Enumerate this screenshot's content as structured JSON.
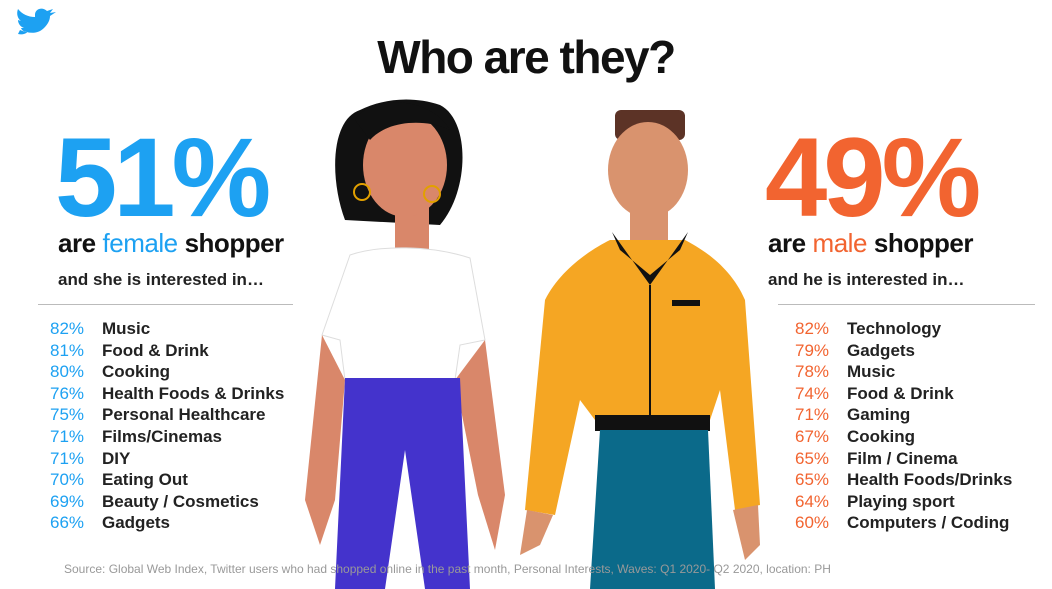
{
  "title": "Who are they?",
  "female": {
    "percent": "51%",
    "subtitle": [
      "are",
      "female",
      "shopper"
    ],
    "intro": "and she is interested in…",
    "items": [
      [
        "82%",
        "Music"
      ],
      [
        "81%",
        "Food & Drink"
      ],
      [
        "80%",
        "Cooking"
      ],
      [
        "76%",
        "Health Foods & Drinks"
      ],
      [
        "75%",
        "Personal Healthcare"
      ],
      [
        "71%",
        "Films/Cinemas"
      ],
      [
        "71%",
        "DIY"
      ],
      [
        "70%",
        "Eating Out"
      ],
      [
        "69%",
        "Beauty / Cosmetics"
      ],
      [
        "66%",
        "Gadgets"
      ]
    ]
  },
  "male": {
    "percent": "49%",
    "subtitle": [
      "are",
      "male",
      "shopper"
    ],
    "intro": "and he is interested in…",
    "items": [
      [
        "82%",
        "Technology"
      ],
      [
        "79%",
        "Gadgets"
      ],
      [
        "78%",
        "Music"
      ],
      [
        "74%",
        "Food & Drink"
      ],
      [
        "71%",
        "Gaming"
      ],
      [
        "67%",
        "Cooking"
      ],
      [
        "65%",
        "Film / Cinema"
      ],
      [
        "65%",
        "Health Foods/Drinks"
      ],
      [
        "64%",
        "Playing sport"
      ],
      [
        "60%",
        "Computers / Coding"
      ]
    ]
  },
  "source": "Source: Global Web Index, Twitter users who had shopped online in the past month, Personal Interests, Waves: Q1 2020- Q2 2020, location: PH"
}
